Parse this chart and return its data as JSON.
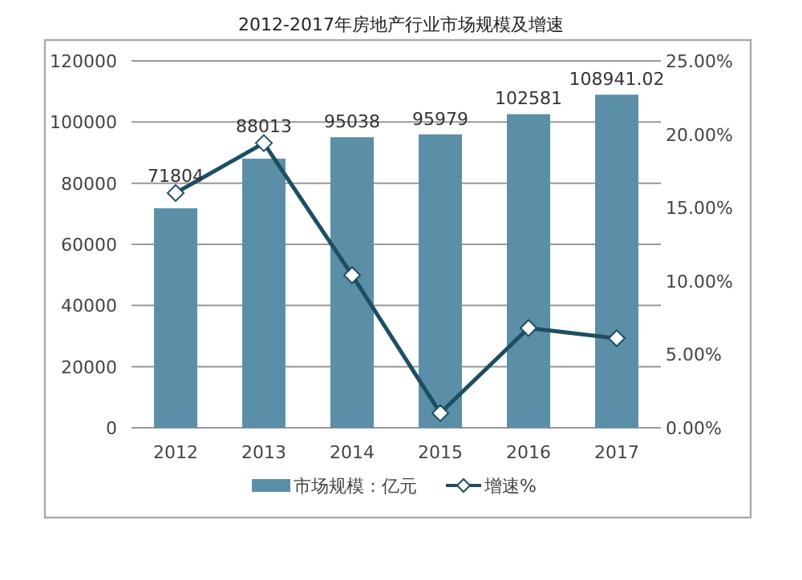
{
  "chart_data": {
    "type": "bar",
    "title": "2012-2017年房地产行业市场规模及增速",
    "categories": [
      "2012",
      "2013",
      "2014",
      "2015",
      "2016",
      "2017"
    ],
    "series": [
      {
        "name": "市场规模：亿元",
        "color": "#5b8fa8",
        "values": [
          71804,
          88013,
          95038,
          95979,
          102581,
          108941.02
        ],
        "value_labels": [
          "71804",
          "88013",
          "95038",
          "95979",
          "102581",
          "108941.02"
        ]
      },
      {
        "name": "增速%",
        "type": "line",
        "axis": "y2",
        "color": "#1d4e62",
        "marker": "diamond",
        "values": [
          16.0,
          19.4,
          10.4,
          1.0,
          6.8,
          6.1
        ]
      }
    ],
    "ylim": [
      0,
      120000
    ],
    "yticks": [
      0,
      20000,
      40000,
      60000,
      80000,
      100000,
      120000
    ],
    "y2lim": [
      0,
      25
    ],
    "y2ticks": [
      {
        "value": 0,
        "label": "0.00%"
      },
      {
        "value": 5,
        "label": "5.00%"
      },
      {
        "value": 10,
        "label": "10.00%"
      },
      {
        "value": 15,
        "label": "15.00%"
      },
      {
        "value": 20,
        "label": "20.00%"
      },
      {
        "value": 25,
        "label": "25.00%"
      }
    ],
    "grid": "y",
    "legend": "bottom"
  }
}
